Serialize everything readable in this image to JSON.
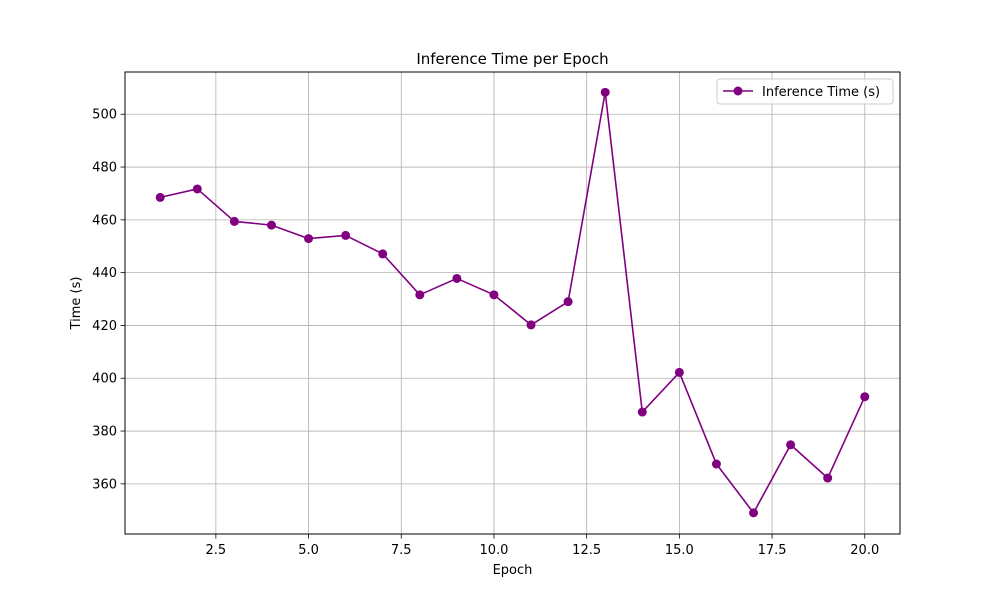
{
  "chart_data": {
    "type": "line",
    "title": "Inference Time per Epoch",
    "xlabel": "Epoch",
    "ylabel": "Time (s)",
    "xlim": [
      0.05,
      20.95
    ],
    "ylim": [
      341.0,
      516.0
    ],
    "xticks": [
      2.5,
      5.0,
      7.5,
      10.0,
      12.5,
      15.0,
      17.5,
      20.0
    ],
    "xtick_labels": [
      "2.5",
      "5.0",
      "7.5",
      "10.0",
      "12.5",
      "15.0",
      "17.5",
      "20.0"
    ],
    "yticks": [
      360,
      380,
      400,
      420,
      440,
      460,
      480,
      500
    ],
    "ytick_labels": [
      "360",
      "380",
      "400",
      "420",
      "440",
      "460",
      "480",
      "500"
    ],
    "grid": true,
    "legend_position": "top-right",
    "series": [
      {
        "name": "Inference Time (s)",
        "color": "#800080",
        "marker": "circle",
        "x": [
          1,
          2,
          3,
          4,
          5,
          6,
          7,
          8,
          9,
          10,
          11,
          12,
          13,
          14,
          15,
          16,
          17,
          18,
          19,
          20
        ],
        "y": [
          468.5,
          471.7,
          459.4,
          458.0,
          452.9,
          454.1,
          447.1,
          431.6,
          437.8,
          431.6,
          420.2,
          429.0,
          508.3,
          387.2,
          402.2,
          367.5,
          349.0,
          374.8,
          362.2,
          393.0
        ]
      }
    ]
  }
}
